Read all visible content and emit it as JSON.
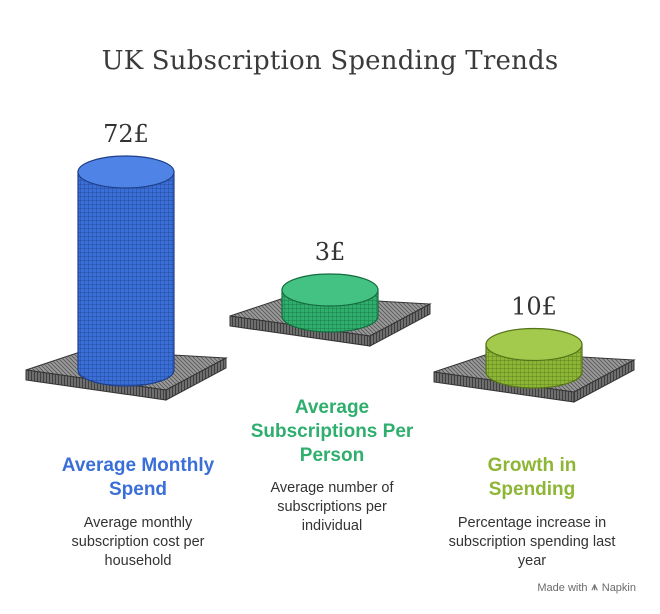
{
  "title": "UK Subscription Spending Trends",
  "footer": {
    "made_with": "Made with",
    "brand": "Napkin",
    "brand_icon": "napkin-logo-icon"
  },
  "colors": {
    "blue": "#3a6fd8",
    "teal": "#2fae6e",
    "green": "#8db536",
    "plate": "#8a8a8a"
  },
  "chart_data": {
    "type": "bar",
    "title": "UK Subscription Spending Trends",
    "categories": [
      "Average Monthly Spend",
      "Average Subscriptions Per Person",
      "Growth in Spending"
    ],
    "values": [
      72,
      3,
      10
    ],
    "value_labels": [
      "72£",
      "3£",
      "10£"
    ],
    "descriptions": [
      "Average monthly subscription cost per household",
      "Average number of subscriptions per individual",
      "Percentage increase in subscription spending last year"
    ]
  }
}
